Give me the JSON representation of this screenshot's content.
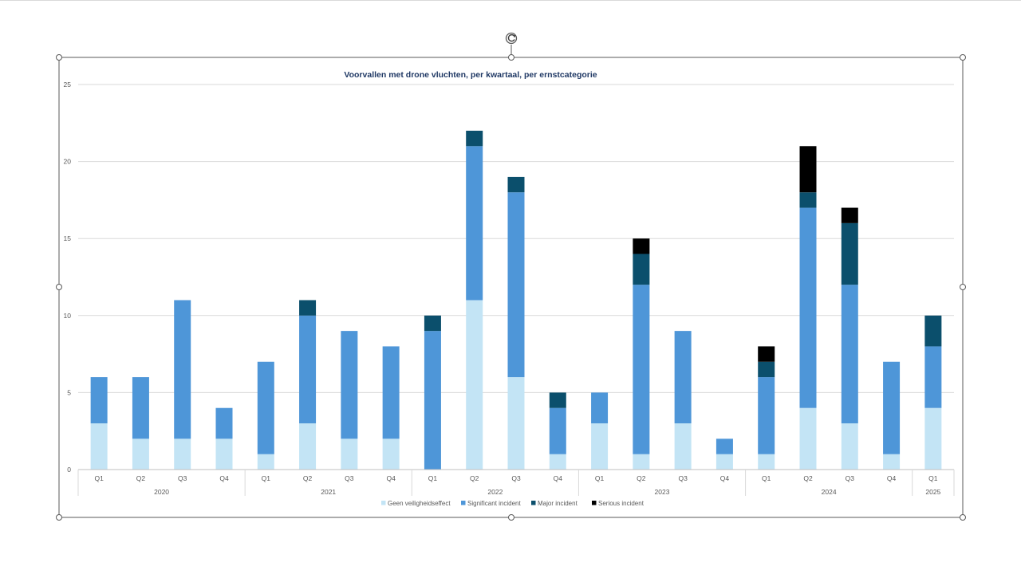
{
  "chart_data": {
    "type": "bar",
    "stacked": true,
    "title": "Voorvallen met drone vluchten, per kwartaal, per ernstcategorie",
    "xlabel": "",
    "ylabel": "",
    "ylim": [
      0,
      25
    ],
    "yticks": [
      0,
      5,
      10,
      15,
      20,
      25
    ],
    "grid": true,
    "legend_position": "bottom",
    "categories": [
      {
        "quarter": "Q1",
        "year": "2020"
      },
      {
        "quarter": "Q2",
        "year": "2020"
      },
      {
        "quarter": "Q3",
        "year": "2020"
      },
      {
        "quarter": "Q4",
        "year": "2020"
      },
      {
        "quarter": "Q1",
        "year": "2021"
      },
      {
        "quarter": "Q2",
        "year": "2021"
      },
      {
        "quarter": "Q3",
        "year": "2021"
      },
      {
        "quarter": "Q4",
        "year": "2021"
      },
      {
        "quarter": "Q1",
        "year": "2022"
      },
      {
        "quarter": "Q2",
        "year": "2022"
      },
      {
        "quarter": "Q3",
        "year": "2022"
      },
      {
        "quarter": "Q4",
        "year": "2022"
      },
      {
        "quarter": "Q1",
        "year": "2023"
      },
      {
        "quarter": "Q2",
        "year": "2023"
      },
      {
        "quarter": "Q3",
        "year": "2023"
      },
      {
        "quarter": "Q4",
        "year": "2023"
      },
      {
        "quarter": "Q1",
        "year": "2024"
      },
      {
        "quarter": "Q2",
        "year": "2024"
      },
      {
        "quarter": "Q3",
        "year": "2024"
      },
      {
        "quarter": "Q4",
        "year": "2024"
      },
      {
        "quarter": "Q1",
        "year": "2025"
      }
    ],
    "years": [
      "2020",
      "2021",
      "2022",
      "2023",
      "2024",
      "2025"
    ],
    "series": [
      {
        "name": "Geen veiligheidseffect",
        "color": "#c3e4f5",
        "values": [
          3,
          2,
          2,
          2,
          1,
          3,
          2,
          2,
          0,
          11,
          6,
          1,
          3,
          1,
          3,
          1,
          1,
          4,
          3,
          1,
          4
        ]
      },
      {
        "name": "Significant incident",
        "color": "#4e96d8",
        "values": [
          3,
          4,
          9,
          2,
          6,
          7,
          7,
          6,
          9,
          10,
          12,
          3,
          2,
          11,
          6,
          1,
          5,
          13,
          9,
          6,
          4
        ]
      },
      {
        "name": "Major incident",
        "color": "#0b4f6c",
        "values": [
          0,
          0,
          0,
          0,
          0,
          1,
          0,
          0,
          1,
          1,
          1,
          1,
          0,
          2,
          0,
          0,
          1,
          1,
          4,
          0,
          2
        ]
      },
      {
        "name": "Serious incident",
        "color": "#000000",
        "values": [
          0,
          0,
          0,
          0,
          0,
          0,
          0,
          0,
          0,
          0,
          0,
          0,
          0,
          1,
          0,
          0,
          1,
          3,
          1,
          0,
          0
        ]
      }
    ]
  }
}
